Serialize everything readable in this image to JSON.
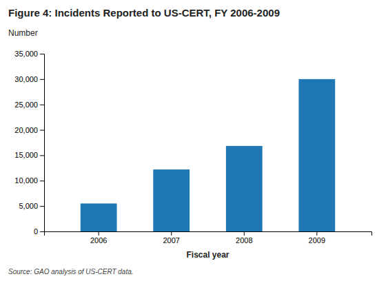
{
  "chart_data": {
    "type": "bar",
    "title": "Figure 4: Incidents Reported to US-CERT, FY 2006-2009",
    "ylabel": "Number",
    "xlabel": "Fiscal year",
    "source": "Source: GAO analysis of US-CERT data.",
    "categories": [
      "2006",
      "2007",
      "2008",
      "2009"
    ],
    "values": [
      5503,
      12198,
      16843,
      30002
    ],
    "ylim": [
      0,
      35000
    ],
    "yticks": [
      0,
      {
        "value": 5000,
        "label": "5,000"
      },
      {
        "value": 10000,
        "label": "10,000"
      },
      {
        "value": 15000,
        "label": "15,000"
      },
      {
        "value": 20000,
        "label": "20,000"
      },
      {
        "value": 25000,
        "label": "25,000"
      },
      {
        "value": 30000,
        "label": "30,000"
      },
      {
        "value": 35000,
        "label": "35,000"
      }
    ],
    "grid": false
  }
}
